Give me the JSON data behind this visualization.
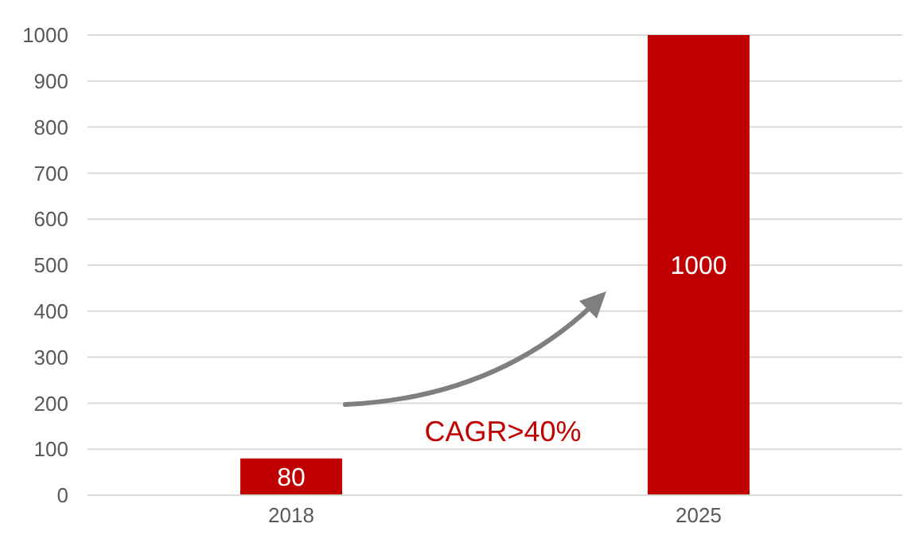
{
  "chart_data": {
    "type": "bar",
    "categories": [
      "2018",
      "2025"
    ],
    "values": [
      80,
      1000
    ],
    "color": "#c00000",
    "ylim": [
      0,
      1000
    ],
    "yticks": [
      0,
      100,
      200,
      300,
      400,
      500,
      600,
      700,
      800,
      900,
      1000
    ],
    "grid": "y",
    "data_labels": true,
    "annotations": [
      "CAGR>40%"
    ]
  }
}
